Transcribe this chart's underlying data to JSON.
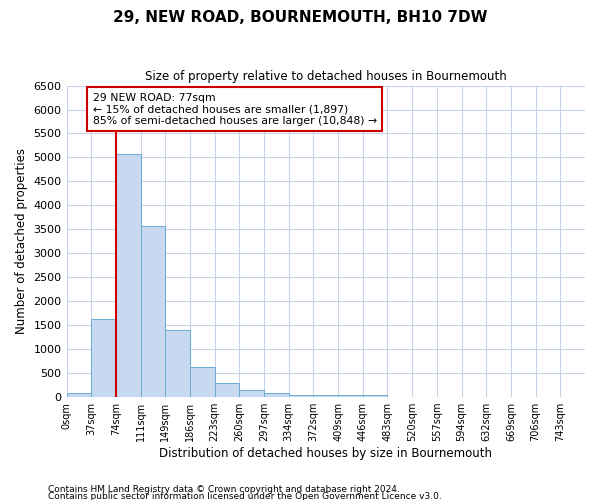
{
  "title": "29, NEW ROAD, BOURNEMOUTH, BH10 7DW",
  "subtitle": "Size of property relative to detached houses in Bournemouth",
  "xlabel": "Distribution of detached houses by size in Bournemouth",
  "ylabel": "Number of detached properties",
  "footer_line1": "Contains HM Land Registry data © Crown copyright and database right 2024.",
  "footer_line2": "Contains public sector information licensed under the Open Government Licence v3.0.",
  "bar_labels": [
    "0sqm",
    "37sqm",
    "74sqm",
    "111sqm",
    "149sqm",
    "186sqm",
    "223sqm",
    "260sqm",
    "297sqm",
    "334sqm",
    "372sqm",
    "409sqm",
    "446sqm",
    "483sqm",
    "520sqm",
    "557sqm",
    "594sqm",
    "632sqm",
    "669sqm",
    "706sqm",
    "743sqm"
  ],
  "bar_values": [
    75,
    1630,
    5080,
    3580,
    1410,
    620,
    290,
    150,
    95,
    50,
    50,
    50,
    50,
    0,
    0,
    0,
    0,
    0,
    0,
    0,
    0
  ],
  "bar_color": "#c6d9f0",
  "bar_edgecolor": "#6aabd2",
  "ylim": [
    0,
    6500
  ],
  "yticks": [
    0,
    500,
    1000,
    1500,
    2000,
    2500,
    3000,
    3500,
    4000,
    4500,
    5000,
    5500,
    6000,
    6500
  ],
  "property_label": "29 NEW ROAD: 77sqm",
  "annotation_line1": "← 15% of detached houses are smaller (1,897)",
  "annotation_line2": "85% of semi-detached houses are larger (10,848) →",
  "vline_x": 74,
  "vline_color": "#cc0000",
  "annotation_box_color": "#ffffff",
  "annotation_box_edgecolor": "#cc0000",
  "bin_width": 37,
  "n_bins": 21,
  "background_color": "#ffffff",
  "grid_color": "#c8d4e8"
}
